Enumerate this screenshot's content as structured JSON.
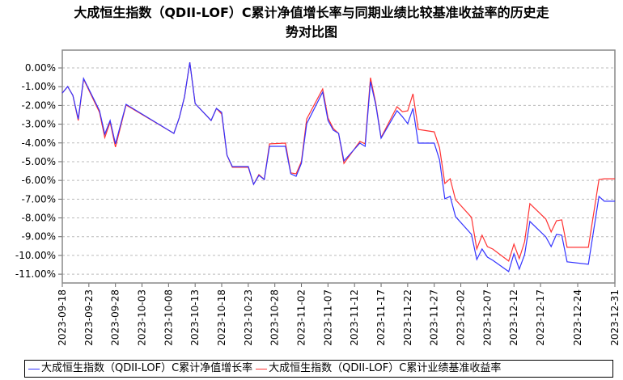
{
  "chart_data": {
    "type": "line",
    "title_line1": "大成恒生指数（QDII-LOF）C累计净值增长率与同期业绩比较基准收益率的历史走",
    "title_line2": "势对比图",
    "xlabel": "",
    "ylabel": "",
    "ylim": [
      -11.47,
      0.95
    ],
    "xlim": [
      "2023-09-18",
      "2023-12-31"
    ],
    "grid": true,
    "legend_placement": "bottom",
    "yticks": [
      "0.00%",
      "-1.00%",
      "-2.00%",
      "-3.00%",
      "-4.00%",
      "-5.00%",
      "-6.00%",
      "-7.00%",
      "-8.00%",
      "-9.00%",
      "-10.00%",
      "-11.00%"
    ],
    "ytick_values": [
      0,
      -1,
      -2,
      -3,
      -4,
      -5,
      -6,
      -7,
      -8,
      -9,
      -10,
      -11
    ],
    "xticks": [
      "2023-09-18",
      "2023-09-23",
      "2023-09-28",
      "2023-10-03",
      "2023-10-08",
      "2023-10-13",
      "2023-10-18",
      "2023-10-23",
      "2023-10-28",
      "2023-11-02",
      "2023-11-07",
      "2023-11-12",
      "2023-11-17",
      "2023-11-22",
      "2023-11-27",
      "2023-12-02",
      "2023-12-07",
      "2023-12-12",
      "2023-12-17",
      "2023-12-24",
      "2023-12-31"
    ],
    "x": [
      "2023-09-18",
      "2023-09-19",
      "2023-09-20",
      "2023-09-21",
      "2023-09-22",
      "2023-09-25",
      "2023-09-26",
      "2023-09-27",
      "2023-09-28",
      "2023-09-30",
      "2023-10-09",
      "2023-10-10",
      "2023-10-11",
      "2023-10-12",
      "2023-10-13",
      "2023-10-16",
      "2023-10-17",
      "2023-10-18",
      "2023-10-19",
      "2023-10-20",
      "2023-10-23",
      "2023-10-24",
      "2023-10-25",
      "2023-10-26",
      "2023-10-27",
      "2023-10-30",
      "2023-10-31",
      "2023-11-01",
      "2023-11-02",
      "2023-11-03",
      "2023-11-06",
      "2023-11-07",
      "2023-11-08",
      "2023-11-09",
      "2023-11-10",
      "2023-11-13",
      "2023-11-14",
      "2023-11-15",
      "2023-11-16",
      "2023-11-17",
      "2023-11-20",
      "2023-11-21",
      "2023-11-22",
      "2023-11-23",
      "2023-11-24",
      "2023-11-27",
      "2023-11-28",
      "2023-11-29",
      "2023-11-30",
      "2023-12-01",
      "2023-12-04",
      "2023-12-05",
      "2023-12-06",
      "2023-12-07",
      "2023-12-08",
      "2023-12-11",
      "2023-12-12",
      "2023-12-13",
      "2023-12-14",
      "2023-12-15",
      "2023-12-18",
      "2023-12-19",
      "2023-12-20",
      "2023-12-21",
      "2023-12-22",
      "2023-12-26",
      "2023-12-28",
      "2023-12-29",
      "2023-12-31"
    ],
    "series": [
      {
        "name": "大成恒生指数（QDII-LOF）C累计净值增长率",
        "color": "#3333ff",
        "values": [
          -1.34,
          -0.99,
          -1.47,
          -2.72,
          -0.56,
          -2.28,
          -3.53,
          -2.8,
          -4.05,
          -1.94,
          -3.49,
          -2.67,
          -1.55,
          0.3,
          -1.9,
          -2.8,
          -2.16,
          -2.37,
          -4.66,
          -5.26,
          -5.26,
          -6.21,
          -5.73,
          -5.95,
          -4.18,
          -4.18,
          -5.65,
          -5.78,
          -5.09,
          -2.97,
          -1.29,
          -2.8,
          -3.32,
          -3.49,
          -4.96,
          -4.01,
          -4.18,
          -0.73,
          -1.98,
          -3.75,
          -2.28,
          -2.6,
          -2.97,
          -2.16,
          -4.01,
          -4.01,
          -4.91,
          -6.98,
          -6.85,
          -7.93,
          -8.88,
          -10.22,
          -9.66,
          -10.09,
          -10.26,
          -10.86,
          -9.91,
          -10.73,
          -9.96,
          -8.19,
          -9.01,
          -9.53,
          -8.88,
          -8.92,
          -10.34,
          -10.47,
          -6.85,
          -7.11,
          -7.11
        ]
      },
      {
        "name": "大成恒生指数（QDII-LOF）C累计业绩基准收益率",
        "color": "#ff3333",
        "values": [
          -1.34,
          -0.99,
          -1.47,
          -2.8,
          -0.6,
          -2.37,
          -3.71,
          -2.89,
          -4.22,
          -1.98,
          -3.49,
          -2.67,
          -1.55,
          0.3,
          -1.9,
          -2.8,
          -2.16,
          -2.46,
          -4.66,
          -5.3,
          -5.3,
          -6.21,
          -5.69,
          -5.95,
          -4.05,
          -4.01,
          -5.6,
          -5.65,
          -5.0,
          -2.72,
          -1.12,
          -2.67,
          -3.23,
          -3.49,
          -5.09,
          -3.92,
          -4.05,
          -0.52,
          -1.9,
          -3.71,
          -2.07,
          -2.33,
          -2.29,
          -1.38,
          -3.28,
          -3.41,
          -4.27,
          -6.16,
          -5.91,
          -7.03,
          -7.97,
          -9.66,
          -8.92,
          -9.53,
          -9.66,
          -10.3,
          -9.4,
          -10.17,
          -9.27,
          -7.24,
          -8.06,
          -8.75,
          -8.15,
          -8.1,
          -9.57,
          -9.57,
          -5.95,
          -5.91,
          -5.91
        ]
      }
    ]
  }
}
